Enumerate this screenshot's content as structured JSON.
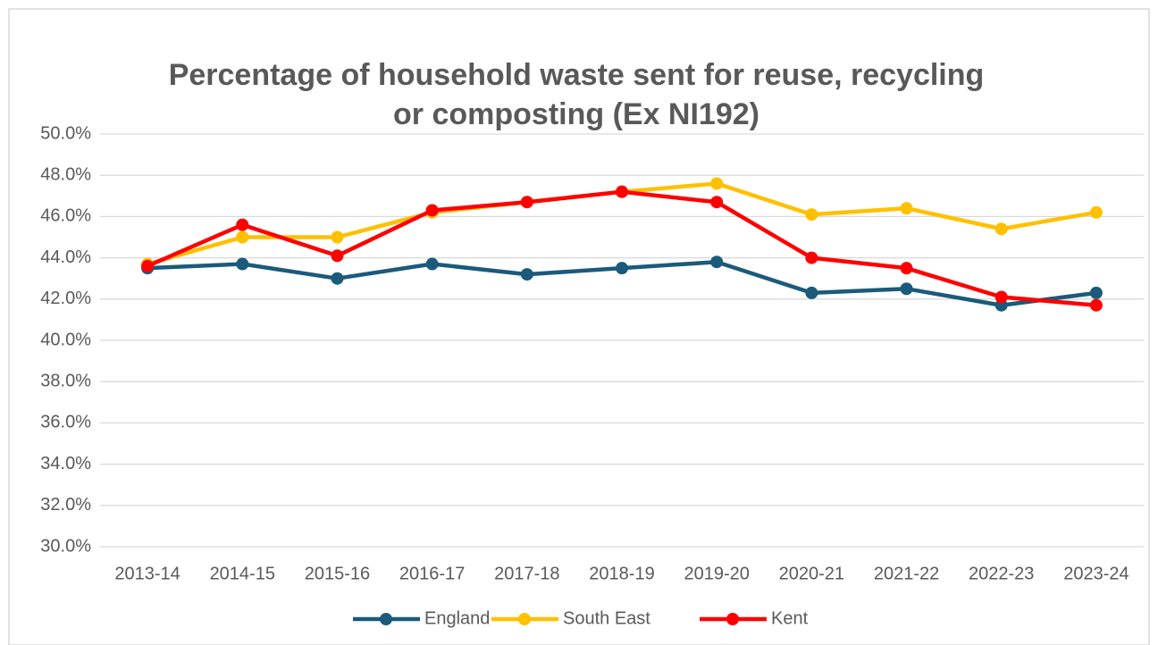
{
  "chart_data": {
    "type": "line",
    "title": [
      "Percentage of household waste sent for reuse, recycling",
      "or composting (Ex NI192)"
    ],
    "categories": [
      "2013-14",
      "2014-15",
      "2015-16",
      "2016-17",
      "2017-18",
      "2018-19",
      "2019-20",
      "2020-21",
      "2021-22",
      "2022-23",
      "2023-24"
    ],
    "series": [
      {
        "name": "England",
        "color": "#1b5a7b",
        "values": [
          43.5,
          43.7,
          43.0,
          43.7,
          43.2,
          43.5,
          43.8,
          42.3,
          42.5,
          41.7,
          42.3
        ]
      },
      {
        "name": "South East",
        "color": "#ffc000",
        "values": [
          43.7,
          45.0,
          45.0,
          46.2,
          46.7,
          47.2,
          47.6,
          46.1,
          46.4,
          45.4,
          46.2
        ]
      },
      {
        "name": "Kent",
        "color": "#ff0000",
        "values": [
          43.6,
          45.6,
          44.1,
          46.3,
          46.7,
          47.2,
          46.7,
          44.0,
          43.5,
          42.1,
          41.7
        ]
      }
    ],
    "ylim": [
      30,
      50
    ],
    "yticks": [
      {
        "value": 30,
        "label": "30.0%"
      },
      {
        "value": 32,
        "label": "32.0%"
      },
      {
        "value": 34,
        "label": "34.0%"
      },
      {
        "value": 36,
        "label": "36.0%"
      },
      {
        "value": 38,
        "label": "38.0%"
      },
      {
        "value": 40,
        "label": "40.0%"
      },
      {
        "value": 42,
        "label": "42.0%"
      },
      {
        "value": 44,
        "label": "44.0%"
      },
      {
        "value": 46,
        "label": "46.0%"
      },
      {
        "value": 48,
        "label": "48.0%"
      },
      {
        "value": 50,
        "label": "50.0%"
      }
    ],
    "grid": true,
    "legend": "bottom"
  }
}
